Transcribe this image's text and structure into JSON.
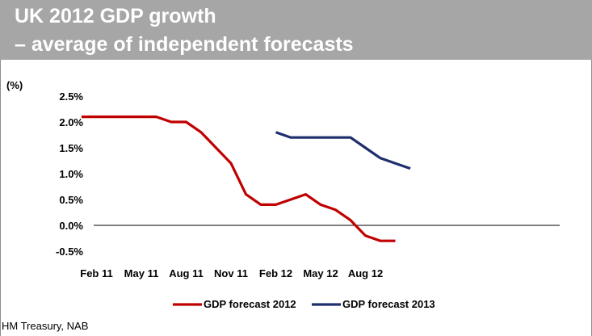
{
  "title": {
    "line1": "UK 2012 GDP growth",
    "line2": "– average of independent forecasts"
  },
  "source": "HM Treasury, NAB",
  "chart_data": {
    "type": "line",
    "ylabel": "(%)",
    "ylim": [
      -0.5,
      2.5
    ],
    "y_ticks": [
      -0.5,
      0.0,
      0.5,
      1.0,
      1.5,
      2.0,
      2.5
    ],
    "y_tick_labels": [
      "-0.5%",
      "0.0%",
      "0.5%",
      "1.0%",
      "1.5%",
      "2.0%",
      "2.5%"
    ],
    "x_labels": [
      "Feb 11",
      "May 11",
      "Aug 11",
      "Nov 11",
      "Feb 12",
      "May 12",
      "Aug 12"
    ],
    "x": [
      "Jan 11",
      "Feb 11",
      "Mar 11",
      "Apr 11",
      "May 11",
      "Jun 11",
      "Jul 11",
      "Aug 11",
      "Sep 11",
      "Oct 11",
      "Nov 11",
      "Dec 11",
      "Jan 12",
      "Feb 12",
      "Mar 12",
      "Apr 12",
      "May 12",
      "Jun 12",
      "Jul 12",
      "Aug 12",
      "Sep 12",
      "Oct 12",
      "Nov 12"
    ],
    "grid": false,
    "legend_position": "bottom",
    "series": [
      {
        "name": "GDP forecast 2012",
        "color": "#c00000",
        "values": [
          2.1,
          2.1,
          2.1,
          2.1,
          2.1,
          2.1,
          2.0,
          2.0,
          1.8,
          1.5,
          1.2,
          0.6,
          0.4,
          0.4,
          0.5,
          0.6,
          0.4,
          0.3,
          0.1,
          -0.2,
          -0.3,
          -0.3,
          null
        ]
      },
      {
        "name": "GDP forecast 2013",
        "color": "#1f2f6e",
        "values": [
          null,
          null,
          null,
          null,
          null,
          null,
          null,
          null,
          null,
          null,
          null,
          null,
          null,
          1.8,
          1.7,
          1.7,
          1.7,
          1.7,
          1.7,
          1.5,
          1.3,
          1.2,
          1.1
        ]
      }
    ]
  }
}
